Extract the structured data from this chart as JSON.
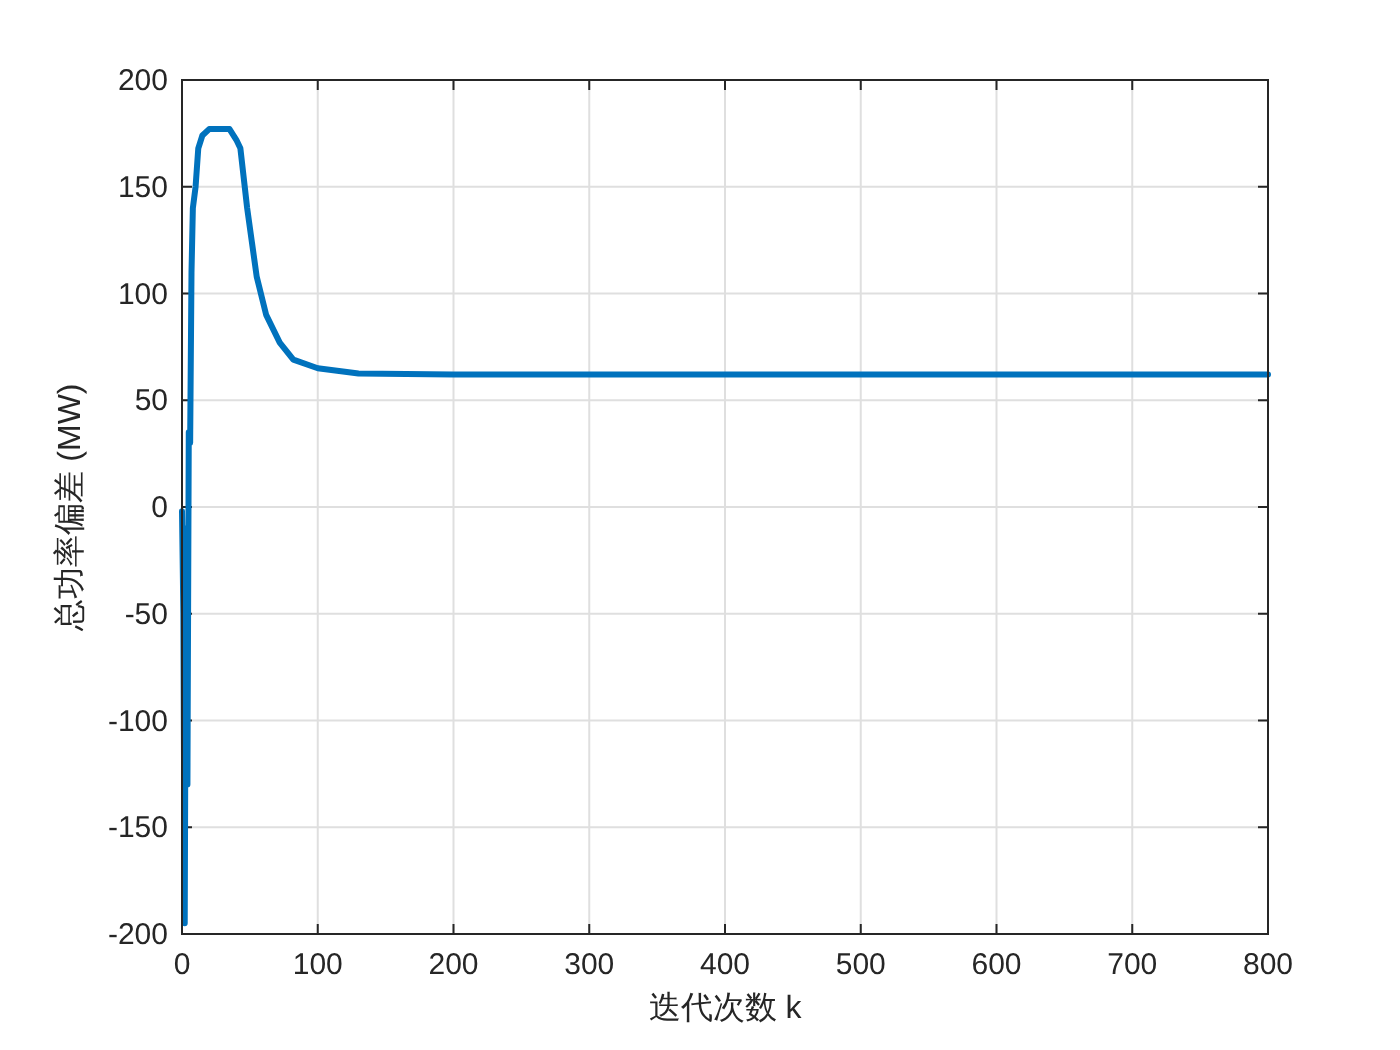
{
  "chart_data": {
    "type": "line",
    "xlabel": "迭代次数 k",
    "ylabel": "总功率偏差 (MW)",
    "xlim": [
      0,
      800
    ],
    "xticks": [
      0,
      100,
      200,
      300,
      400,
      500,
      600,
      700,
      800
    ],
    "ylim": [
      -200,
      200
    ],
    "yticks": [
      -200,
      -150,
      -100,
      -50,
      0,
      50,
      100,
      150,
      200
    ],
    "grid": true,
    "series": [
      {
        "color": "#0072bd",
        "x": [
          0,
          1,
          2,
          3,
          4,
          5,
          6,
          7,
          8,
          10,
          12,
          15,
          20,
          35,
          40,
          43,
          48,
          55,
          62,
          72,
          82,
          100,
          130,
          200,
          800
        ],
        "values": [
          -2,
          -50,
          -195,
          -10,
          -130,
          35,
          30,
          110,
          140,
          150,
          168,
          174,
          177,
          177,
          172,
          168,
          140,
          108,
          90,
          77,
          69,
          65,
          62.5,
          62,
          62
        ]
      }
    ]
  }
}
